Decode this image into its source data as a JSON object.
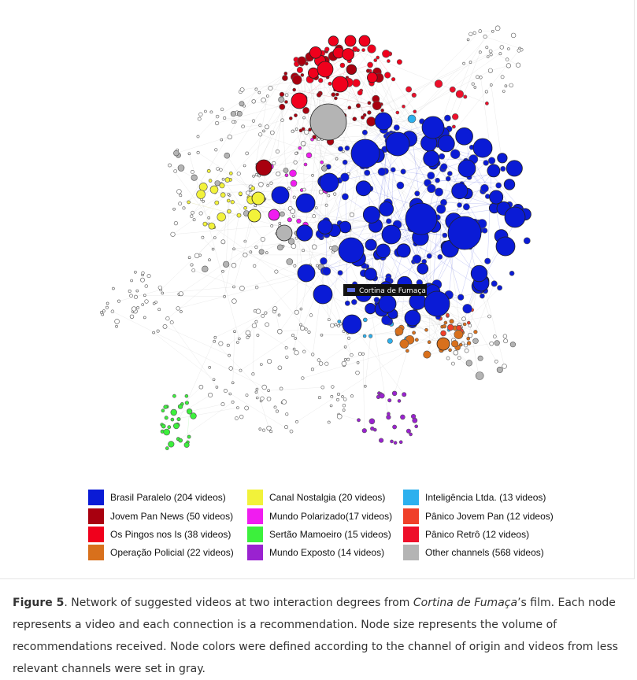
{
  "figure": {
    "node_label": "Cortina de Fumaça",
    "legend": [
      {
        "label": "Brasil Paralelo (204 videos)",
        "color": "#0a1bd6"
      },
      {
        "label": "Jovem Pan News (50 videos)",
        "color": "#a8000f"
      },
      {
        "label": "Os Pingos nos Is (38 videos)",
        "color": "#f0001c"
      },
      {
        "label": "Operação Policial (22 videos)",
        "color": "#d8701c"
      },
      {
        "label": "Canal Nostalgia (20 videos)",
        "color": "#f2f23a"
      },
      {
        "label": "Mundo Polarizado(17 videos)",
        "color": "#f01cf0"
      },
      {
        "label": "Sertão Mamoeiro (15 videos)",
        "color": "#3cf03c"
      },
      {
        "label": "Mundo Exposto (14 videos)",
        "color": "#9a22d0"
      },
      {
        "label": "Inteligência Ltda. (13 videos)",
        "color": "#2db0ee"
      },
      {
        "label": "Pânico Jovem Pan (12 videos)",
        "color": "#f0402a"
      },
      {
        "label": "Pânico Retrô (12 videos)",
        "color": "#ee0f2a"
      },
      {
        "label": "Other channels (568 videos)",
        "color": "#b4b4b4"
      }
    ],
    "caption": {
      "label": "Figure 5",
      "text_before": ". Network of suggested videos at two interaction degrees from ",
      "film": "Cortina de Fumaça",
      "text_after": "’s film. Each node represents a video and each connection is a recommendation. Node size represents the volume of recommendations received. Node colors were defined according to the channel of origin and videos from less relevant channels were set in gray."
    }
  }
}
